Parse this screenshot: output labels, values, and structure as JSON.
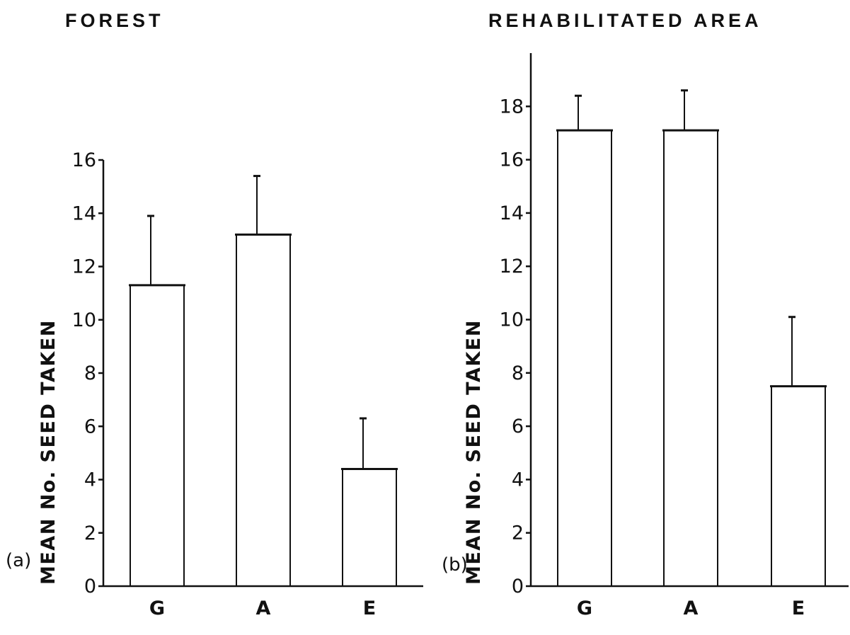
{
  "chart_data": [
    {
      "type": "bar",
      "panel_label": "(a)",
      "title": "FOREST",
      "xlabel": "",
      "ylabel": "MEAN No. SEED TAKEN",
      "categories": [
        "G",
        "A",
        "E"
      ],
      "values": [
        11.3,
        13.2,
        4.4
      ],
      "errors": [
        2.6,
        2.2,
        1.9
      ],
      "ylim": [
        0,
        16
      ],
      "yticks": [
        0,
        2,
        4,
        6,
        8,
        10,
        12,
        14,
        16
      ],
      "ytick_labels": [
        "0",
        "2",
        "4",
        "6",
        "8",
        "10",
        "12",
        "14",
        "16"
      ],
      "grid": false,
      "legend": "none"
    },
    {
      "type": "bar",
      "panel_label": "(b)",
      "title": "REHABILITATED  AREA",
      "xlabel": "",
      "ylabel": "MEAN No. SEED TAKEN",
      "categories": [
        "G",
        "A",
        "E"
      ],
      "values": [
        17.1,
        17.1,
        7.5
      ],
      "errors": [
        1.3,
        1.5,
        2.6
      ],
      "ylim": [
        0,
        20
      ],
      "yticks": [
        0,
        2,
        4,
        6,
        8,
        10,
        12,
        14,
        16,
        18
      ],
      "ytick_labels": [
        "0",
        "2",
        "4",
        "6",
        "8",
        "10",
        "12",
        "14",
        "16",
        "18"
      ],
      "grid": false,
      "legend": "none"
    }
  ],
  "colors": {
    "ink": "#111111",
    "background": "#ffffff",
    "bar_fill": "#ffffff"
  }
}
